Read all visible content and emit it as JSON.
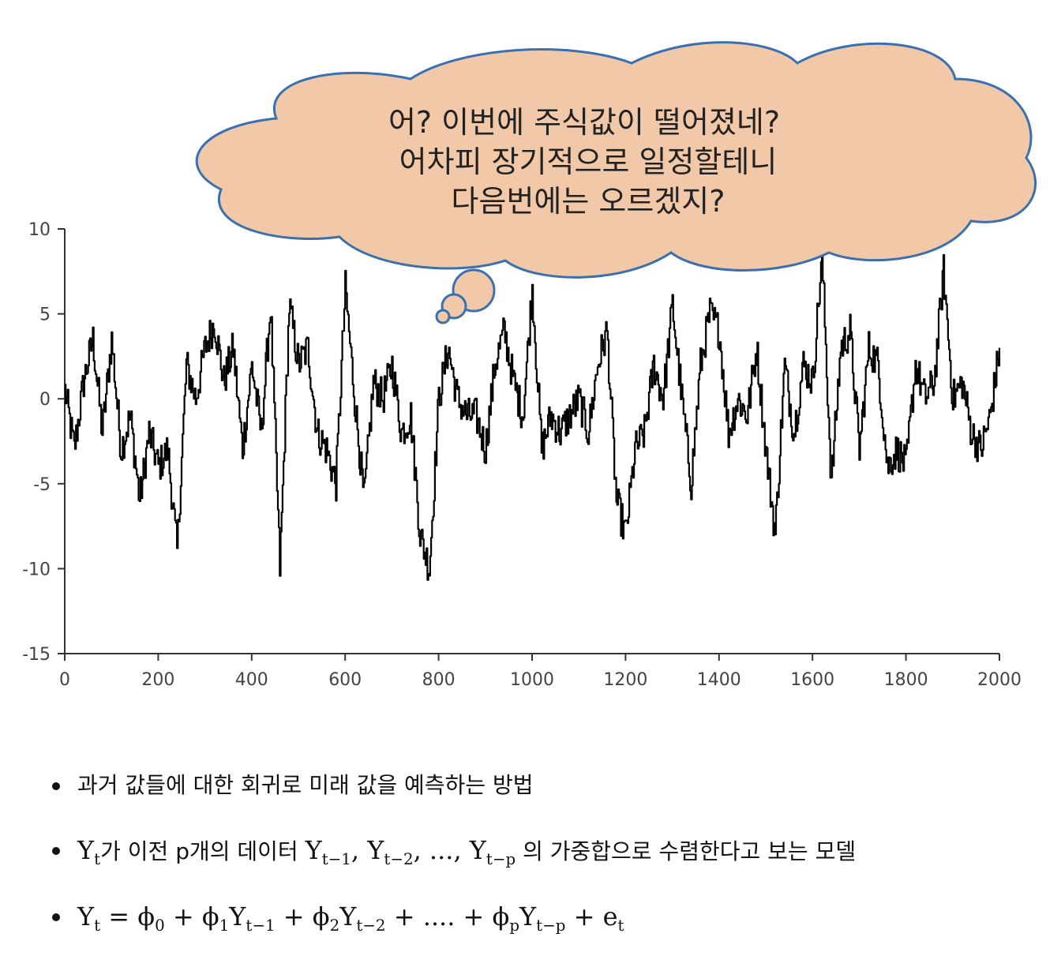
{
  "chart_data": {
    "type": "line",
    "title": "",
    "xlabel": "",
    "ylabel": "",
    "xlim": [
      0,
      2000
    ],
    "ylim": [
      -15,
      10
    ],
    "xticks": [
      "0",
      "200",
      "400",
      "600",
      "800",
      "1000",
      "1200",
      "1400",
      "1600",
      "1800",
      "2000"
    ],
    "yticks": [
      "10",
      "5",
      "0",
      "-5",
      "-10",
      "-15"
    ],
    "grid": false,
    "series": [
      {
        "color": "#000000",
        "x": [
          0,
          20,
          40,
          60,
          80,
          100,
          120,
          140,
          160,
          180,
          200,
          220,
          240,
          260,
          280,
          300,
          320,
          340,
          360,
          380,
          400,
          420,
          440,
          460,
          480,
          500,
          520,
          540,
          560,
          580,
          600,
          620,
          640,
          660,
          680,
          700,
          720,
          740,
          760,
          780,
          800,
          820,
          840,
          860,
          880,
          900,
          920,
          940,
          960,
          980,
          1000,
          1020,
          1040,
          1060,
          1080,
          1100,
          1120,
          1140,
          1160,
          1180,
          1200,
          1220,
          1240,
          1260,
          1280,
          1300,
          1320,
          1340,
          1360,
          1380,
          1400,
          1420,
          1440,
          1460,
          1480,
          1500,
          1520,
          1540,
          1560,
          1580,
          1600,
          1620,
          1640,
          1660,
          1680,
          1700,
          1720,
          1740,
          1760,
          1780,
          1800,
          1820,
          1840,
          1860,
          1880,
          1900,
          1920,
          1940,
          1960,
          1980,
          2000
        ],
        "y": [
          0.5,
          -3,
          1,
          3.5,
          -2,
          3.5,
          -3,
          -1,
          -6,
          -2,
          -4,
          -3,
          -9,
          2,
          0,
          3,
          4.5,
          1,
          3,
          -3,
          2,
          -2,
          5.5,
          -10,
          5.5,
          2,
          3,
          -2,
          -3,
          -5,
          6.5,
          0,
          -6,
          1,
          0,
          2,
          -2,
          -1,
          -8,
          -10,
          0,
          3,
          0,
          -1,
          -1,
          -3,
          2,
          4,
          1,
          -1,
          6.5,
          -3,
          -1,
          -2,
          -1,
          0,
          -2,
          2,
          4,
          -6,
          -8,
          -3,
          -2,
          2,
          0,
          5.5,
          0,
          -5,
          2,
          5,
          4,
          -2,
          0,
          -1,
          3,
          -3,
          -8,
          2,
          -2,
          2,
          1,
          8.5,
          -5,
          3,
          4,
          -3,
          3,
          2,
          -4,
          -3,
          -4,
          2,
          0,
          1,
          7.5,
          0,
          1,
          -2,
          -3,
          -1,
          3
        ]
      }
    ]
  },
  "bubble": {
    "lines": [
      "어? 이번에 주식값이 떨어졌네?",
      "어차피 장기적으로 일정할테니",
      "다음번에는 오르겠지?"
    ],
    "fill": "#f2c9a8"
  },
  "bullets": {
    "b1": "과거 값들에 대한 회귀로 미래 값을 예측하는 방법",
    "b2_var": "Y",
    "b2_var_sub": "t",
    "b2_text1": "가 이전 ",
    "b2_p": "p",
    "b2_text2": "개의 데이터 ",
    "b2_y1": "Y",
    "b2_y1_sub": "t−1",
    "b2_sep1": ", ",
    "b2_y2": "Y",
    "b2_y2_sub": "t−2",
    "b2_sep2": ", ..., ",
    "b2_yp": "Y",
    "b2_yp_sub": "t−p",
    "b2_text3": " 의 가중합으로 수렴한다고 보는 모델",
    "eq_lhs": "Y",
    "eq_lhs_sub": "t",
    "eq_mid": " = ϕ",
    "eq_phi0_sub": "0",
    "eq_plus1": " + ϕ",
    "eq_phi1_sub": "1",
    "eq_y1": "Y",
    "eq_y1_sub": "t−1",
    "eq_plus2": " + ϕ",
    "eq_phi2_sub": "2",
    "eq_y2": "Y",
    "eq_y2_sub": "t−2",
    "eq_dots": " + .... + ϕ",
    "eq_phip_sub": "p",
    "eq_yp": "Y",
    "eq_yp_sub": "t−p",
    "eq_plus3": " + e",
    "eq_e_sub": "t"
  }
}
